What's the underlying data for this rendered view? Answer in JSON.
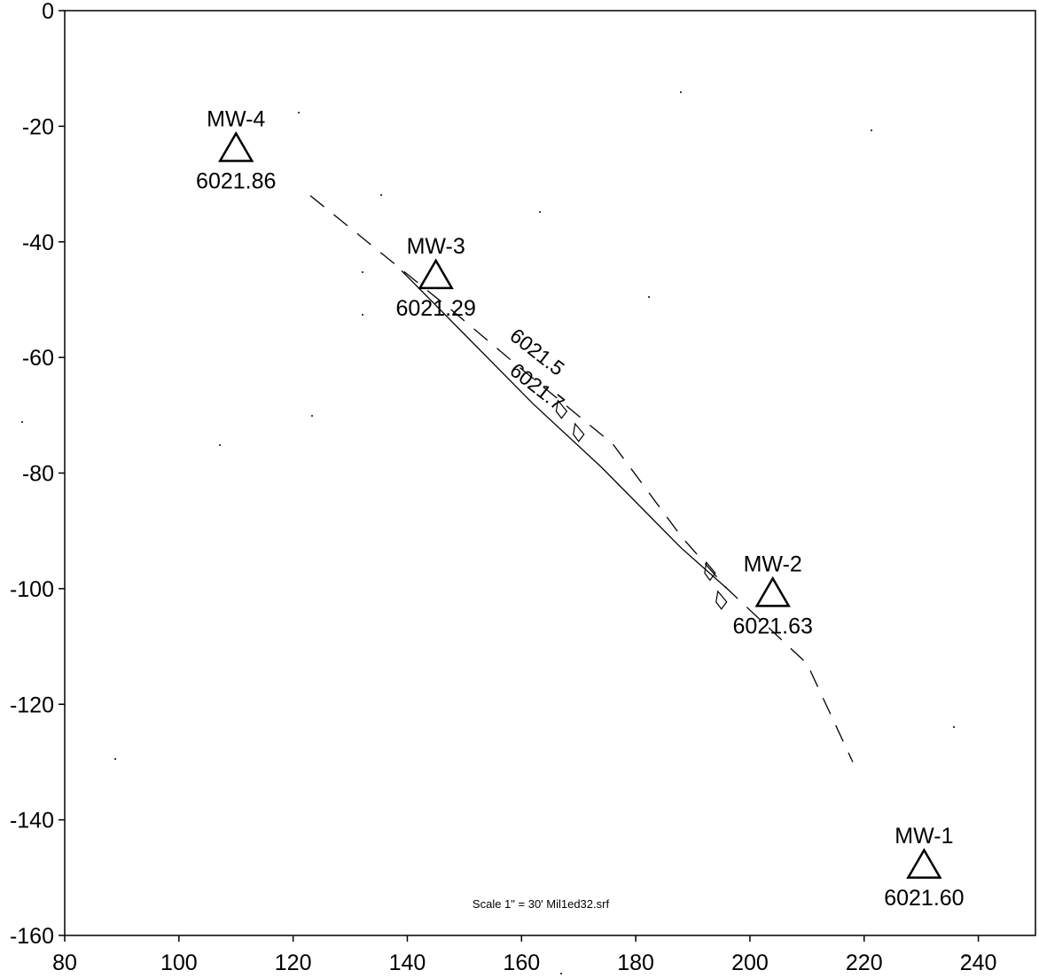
{
  "chart_data": {
    "type": "scatter",
    "title": "",
    "xlabel": "",
    "ylabel": "",
    "xlim": [
      80,
      250
    ],
    "ylim": [
      -160,
      0
    ],
    "x_ticks": [
      "80",
      "100",
      "120",
      "140",
      "160",
      "180",
      "200",
      "220",
      "240"
    ],
    "y_ticks": [
      "0",
      "-20",
      "-40",
      "-60",
      "-80",
      "-100",
      "-120",
      "-140",
      "-160"
    ],
    "grid": false,
    "points": [
      {
        "name": "MW-4",
        "x": 110,
        "y": -24,
        "value": "6021.86"
      },
      {
        "name": "MW-3",
        "x": 145,
        "y": -46,
        "value": "6021.29"
      },
      {
        "name": "MW-2",
        "x": 204,
        "y": -101,
        "value": "6021.63"
      },
      {
        "name": "MW-1",
        "x": 230.5,
        "y": -148,
        "value": "6021.60"
      }
    ],
    "contours": [
      {
        "label": "6021.5",
        "label_x": 162,
        "label_y": -60,
        "path": [
          [
            123,
            -32
          ],
          [
            148,
            -52
          ],
          [
            160,
            -62
          ],
          [
            176,
            -75
          ],
          [
            188,
            -91
          ],
          [
            196,
            -100
          ],
          [
            210,
            -113
          ],
          [
            218,
            -130
          ]
        ]
      },
      {
        "label": "6021.7",
        "label_x": 162,
        "label_y": -66,
        "path": [
          [
            139,
            -45
          ],
          [
            150,
            -56
          ],
          [
            162,
            -68
          ],
          [
            174,
            -79
          ],
          [
            188,
            -93
          ],
          [
            196,
            -100
          ]
        ]
      }
    ],
    "note": "Scale 1\" = 30'  Mil1ed32.srf"
  }
}
